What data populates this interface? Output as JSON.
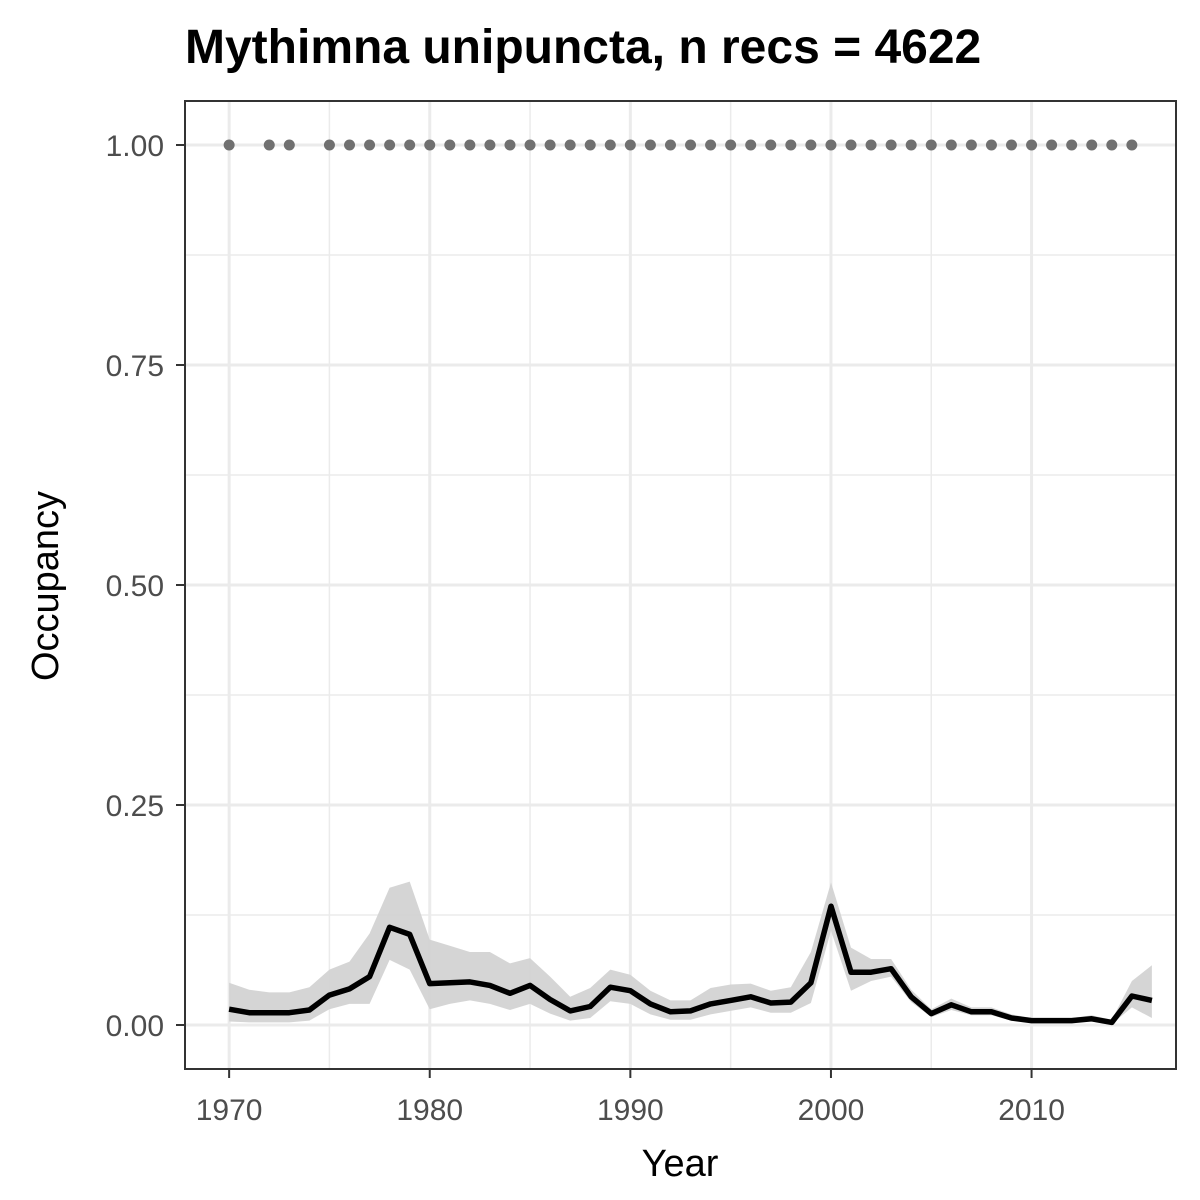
{
  "chart_data": {
    "type": "line",
    "title": "Mythimna unipuncta, n recs = 4622",
    "xlabel": "Year",
    "ylabel": "Occupancy",
    "xlim": [
      1967.8,
      2017.2
    ],
    "ylim": [
      -0.05,
      1.05
    ],
    "x_ticks": [
      1970,
      1980,
      1990,
      2000,
      2010
    ],
    "x_tick_labels": [
      "1970",
      "1980",
      "1990",
      "2000",
      "2010"
    ],
    "y_ticks": [
      0,
      0.25,
      0.5,
      0.75,
      1
    ],
    "y_tick_labels": [
      "0.00",
      "0.25",
      "0.50",
      "0.75",
      "1.00"
    ],
    "grid": true,
    "colors": {
      "line": "#000000",
      "ribbon": "#d3d3d3",
      "points": "#707070",
      "grid": "#ebebeb",
      "frame": "#333333"
    },
    "series": [
      {
        "x": [
          1970,
          1971,
          1972,
          1973,
          1974,
          1975,
          1976,
          1977,
          1978,
          1979,
          1980,
          1981,
          1982,
          1983,
          1984,
          1985,
          1986,
          1987,
          1988,
          1989,
          1990,
          1991,
          1992,
          1993,
          1994,
          1995,
          1996,
          1997,
          1998,
          1999,
          2000,
          2001,
          2002,
          2003,
          2004,
          2005,
          2006,
          2007,
          2008,
          2009,
          2010,
          2011,
          2012,
          2013,
          2014,
          2015,
          2016
        ],
        "y": [
          0.018,
          0.014,
          0.014,
          0.014,
          0.017,
          0.034,
          0.041,
          0.055,
          0.111,
          0.103,
          0.047,
          0.048,
          0.049,
          0.045,
          0.036,
          0.045,
          0.029,
          0.016,
          0.021,
          0.043,
          0.039,
          0.024,
          0.015,
          0.016,
          0.024,
          0.028,
          0.032,
          0.025,
          0.026,
          0.048,
          0.135,
          0.06,
          0.06,
          0.064,
          0.032,
          0.013,
          0.023,
          0.015,
          0.015,
          0.008,
          0.005,
          0.005,
          0.005,
          0.007,
          0.003,
          0.033,
          0.028
        ],
        "lower": [
          0.004,
          0.003,
          0.003,
          0.003,
          0.005,
          0.018,
          0.024,
          0.024,
          0.074,
          0.063,
          0.018,
          0.024,
          0.028,
          0.024,
          0.017,
          0.024,
          0.013,
          0.005,
          0.008,
          0.027,
          0.024,
          0.012,
          0.006,
          0.006,
          0.012,
          0.016,
          0.02,
          0.014,
          0.014,
          0.025,
          0.107,
          0.039,
          0.05,
          0.055,
          0.026,
          0.009,
          0.017,
          0.011,
          0.011,
          0.005,
          0.003,
          0.003,
          0.003,
          0.004,
          0.001,
          0.02,
          0.008
        ],
        "upper": [
          0.048,
          0.04,
          0.037,
          0.037,
          0.043,
          0.063,
          0.072,
          0.104,
          0.156,
          0.163,
          0.097,
          0.09,
          0.083,
          0.083,
          0.07,
          0.076,
          0.055,
          0.032,
          0.042,
          0.063,
          0.057,
          0.039,
          0.028,
          0.028,
          0.042,
          0.046,
          0.047,
          0.039,
          0.043,
          0.083,
          0.162,
          0.088,
          0.075,
          0.075,
          0.04,
          0.018,
          0.03,
          0.02,
          0.02,
          0.012,
          0.008,
          0.008,
          0.008,
          0.011,
          0.006,
          0.05,
          0.068
        ]
      }
    ],
    "points": {
      "y": 1.0,
      "x": [
        1970,
        1972,
        1973,
        1975,
        1976,
        1977,
        1978,
        1979,
        1980,
        1981,
        1982,
        1983,
        1984,
        1985,
        1986,
        1987,
        1988,
        1989,
        1990,
        1991,
        1992,
        1993,
        1994,
        1995,
        1996,
        1997,
        1998,
        1999,
        2000,
        2001,
        2002,
        2003,
        2004,
        2005,
        2006,
        2007,
        2008,
        2009,
        2010,
        2011,
        2012,
        2013,
        2014,
        2015
      ]
    }
  }
}
